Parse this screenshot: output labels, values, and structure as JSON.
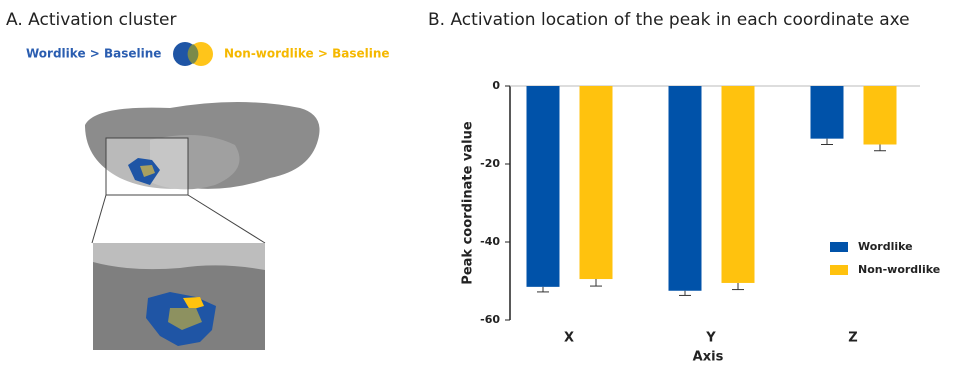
{
  "panel_a": {
    "title": "A. Activation cluster",
    "legend": [
      "Wordlike > Baseline",
      "Non-wordlike > Baseline"
    ]
  },
  "chart_data": {
    "type": "bar",
    "title": "B. Activation location of the peak in each coordinate axe",
    "y_label": "Peak coordinate value",
    "x_label": "Axis",
    "categories": [
      "X",
      "Y",
      "Z"
    ],
    "series": [
      {
        "name": "Wordlike",
        "color": "#0052a9",
        "values": [
          -51.5,
          -52.5,
          -13.5
        ],
        "errors": [
          1.3,
          1.2,
          1.5
        ]
      },
      {
        "name": "Non-wordlike",
        "color": "#ffc20e",
        "values": [
          -49.5,
          -50.5,
          -15
        ],
        "errors": [
          1.8,
          1.7,
          1.6
        ]
      }
    ],
    "ylim": [
      -60,
      0
    ],
    "yticks": [
      -60,
      -40,
      -20,
      0
    ],
    "legend": "lower right"
  }
}
